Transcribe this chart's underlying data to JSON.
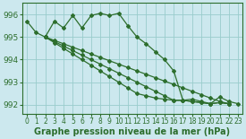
{
  "title": "Graphe pression niveau de la mer (hPa)",
  "bg_color": "#cce8ee",
  "grid_color": "#99cccc",
  "line_color": "#2d6e2d",
  "series_main": [
    995.7,
    995.2,
    995.0,
    995.7,
    995.4,
    995.95,
    995.4,
    995.95,
    996.05,
    995.95,
    996.05,
    995.5,
    995.0,
    994.7,
    994.35,
    994.0,
    993.5,
    992.2,
    992.25,
    992.15,
    992.05,
    992.35,
    992.15,
    992.05
  ],
  "series_straight": [
    [
      995.0,
      994.85,
      994.7,
      994.55,
      994.4,
      994.25,
      994.1,
      993.95,
      993.8,
      993.65,
      993.5,
      993.35,
      993.2,
      993.05,
      992.9,
      992.75,
      992.6,
      992.45,
      992.3,
      992.15,
      992.05
    ],
    [
      995.0,
      994.8,
      994.6,
      994.4,
      994.2,
      994.0,
      993.8,
      993.6,
      993.4,
      993.2,
      993.0,
      992.8,
      992.6,
      992.4,
      992.2,
      992.2,
      992.15,
      992.1,
      992.05,
      992.1,
      992.05
    ],
    [
      995.0,
      994.75,
      994.5,
      994.25,
      994.0,
      993.75,
      993.5,
      993.25,
      993.0,
      992.75,
      992.5,
      992.4,
      992.3,
      992.25,
      992.2,
      992.2,
      992.15,
      992.1,
      992.05,
      992.1,
      992.05
    ]
  ],
  "straight_start_x": 2,
  "xlim": [
    -0.5,
    23.5
  ],
  "ylim": [
    991.6,
    996.5
  ],
  "yticks": [
    992,
    993,
    994,
    995,
    996
  ],
  "xticks": [
    0,
    1,
    2,
    3,
    4,
    5,
    6,
    7,
    8,
    9,
    10,
    11,
    12,
    13,
    14,
    15,
    16,
    17,
    18,
    19,
    20,
    21,
    22,
    23
  ],
  "xlabel_fontsize": 6.5,
  "title_fontsize": 7,
  "marker": "D",
  "marker_size": 2.0,
  "linewidth": 0.9
}
